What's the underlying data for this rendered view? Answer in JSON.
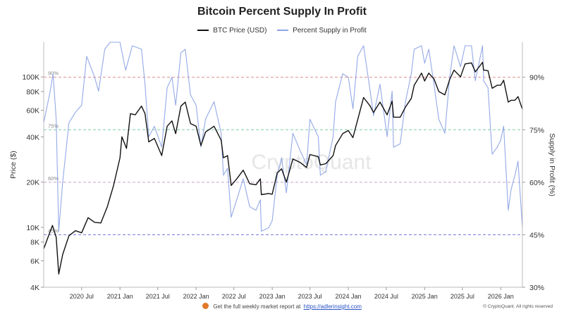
{
  "chart_data": {
    "type": "line",
    "title": "Bitcoin Percent Supply In Profit",
    "ylabel_left": "Price ($)",
    "ylabel_right": "Supply in Profit (%)",
    "left_axis": {
      "scale": "log",
      "range": [
        4000,
        170000
      ],
      "ticks": [
        4000,
        6000,
        8000,
        10000,
        20000,
        40000,
        60000,
        80000,
        100000
      ],
      "tick_labels": [
        "4K",
        "6K",
        "8K",
        "10K",
        "20K",
        "40K",
        "60K",
        "80K",
        "100K"
      ]
    },
    "right_axis": {
      "range": [
        30,
        100
      ],
      "ticks": [
        30,
        45,
        60,
        75,
        90
      ],
      "tick_labels": [
        "30%",
        "45%",
        "60%",
        "75%",
        "90%"
      ]
    },
    "x_ticks": [
      "2020 Jul",
      "2021 Jan",
      "2021 Jul",
      "2022 Jan",
      "2022 Jul",
      "2023 Jan",
      "2023 Jul",
      "2024 Jan",
      "2024 Jul",
      "2025 Jan",
      "2025 Jul",
      "2026 Jan"
    ],
    "x_range": [
      "2020-01-01",
      "2026-04-15"
    ],
    "reference_lines": [
      {
        "label": "90%",
        "value": 90,
        "color": "#e08a8a"
      },
      {
        "label": "75%",
        "value": 75,
        "color": "#7fd0a6"
      },
      {
        "label": "60%",
        "value": 60,
        "color": "#c9a0c9"
      },
      {
        "label": "45%",
        "value": 45,
        "color": "#6f74d8"
      }
    ],
    "watermark": "CryptoQuant",
    "series": [
      {
        "name": "BTC Price (USD)",
        "axis": "left",
        "color": "#111111",
        "points": [
          [
            "2020-01-01",
            7200
          ],
          [
            "2020-02-12",
            10300
          ],
          [
            "2020-03-01",
            8600
          ],
          [
            "2020-03-13",
            4900
          ],
          [
            "2020-04-01",
            6600
          ],
          [
            "2020-05-01",
            8800
          ],
          [
            "2020-06-01",
            9500
          ],
          [
            "2020-07-01",
            9200
          ],
          [
            "2020-08-01",
            11600
          ],
          [
            "2020-09-01",
            10800
          ],
          [
            "2020-10-01",
            10700
          ],
          [
            "2020-11-01",
            13700
          ],
          [
            "2020-12-01",
            19000
          ],
          [
            "2021-01-01",
            29000
          ],
          [
            "2021-01-10",
            40000
          ],
          [
            "2021-02-01",
            33500
          ],
          [
            "2021-02-20",
            57000
          ],
          [
            "2021-03-15",
            56000
          ],
          [
            "2021-04-14",
            64000
          ],
          [
            "2021-05-01",
            57000
          ],
          [
            "2021-05-19",
            37000
          ],
          [
            "2021-06-15",
            39000
          ],
          [
            "2021-07-20",
            30000
          ],
          [
            "2021-08-15",
            47000
          ],
          [
            "2021-09-07",
            51000
          ],
          [
            "2021-09-25",
            42000
          ],
          [
            "2021-10-20",
            64000
          ],
          [
            "2021-11-10",
            68000
          ],
          [
            "2021-12-05",
            49000
          ],
          [
            "2022-01-01",
            47000
          ],
          [
            "2022-01-24",
            35000
          ],
          [
            "2022-02-15",
            43000
          ],
          [
            "2022-03-28",
            47000
          ],
          [
            "2022-05-01",
            38000
          ],
          [
            "2022-05-12",
            29000
          ],
          [
            "2022-06-01",
            30000
          ],
          [
            "2022-06-18",
            19000
          ],
          [
            "2022-07-15",
            21000
          ],
          [
            "2022-08-15",
            24000
          ],
          [
            "2022-09-15",
            19500
          ],
          [
            "2022-10-15",
            19200
          ],
          [
            "2022-11-05",
            21000
          ],
          [
            "2022-11-10",
            16500
          ],
          [
            "2022-12-15",
            16800
          ],
          [
            "2023-01-01",
            16600
          ],
          [
            "2023-01-25",
            23000
          ],
          [
            "2023-02-15",
            24500
          ],
          [
            "2023-03-10",
            20000
          ],
          [
            "2023-04-10",
            28500
          ],
          [
            "2023-05-15",
            27000
          ],
          [
            "2023-06-15",
            25000
          ],
          [
            "2023-07-01",
            30500
          ],
          [
            "2023-08-10",
            29500
          ],
          [
            "2023-08-20",
            26000
          ],
          [
            "2023-09-15",
            26500
          ],
          [
            "2023-10-20",
            30000
          ],
          [
            "2023-11-01",
            35000
          ],
          [
            "2023-12-05",
            42000
          ],
          [
            "2024-01-01",
            44000
          ],
          [
            "2024-01-23",
            39500
          ],
          [
            "2024-02-15",
            52000
          ],
          [
            "2024-03-14",
            73000
          ],
          [
            "2024-04-15",
            64000
          ],
          [
            "2024-05-01",
            58000
          ],
          [
            "2024-06-01",
            68000
          ],
          [
            "2024-07-05",
            56000
          ],
          [
            "2024-07-29",
            69000
          ],
          [
            "2024-08-05",
            54000
          ],
          [
            "2024-09-06",
            54000
          ],
          [
            "2024-10-01",
            63000
          ],
          [
            "2024-10-29",
            72000
          ],
          [
            "2024-11-12",
            88000
          ],
          [
            "2024-12-17",
            106000
          ],
          [
            "2025-01-01",
            94000
          ],
          [
            "2025-01-21",
            106000
          ],
          [
            "2025-02-15",
            97000
          ],
          [
            "2025-03-10",
            80000
          ],
          [
            "2025-04-08",
            76000
          ],
          [
            "2025-05-01",
            96000
          ],
          [
            "2025-05-22",
            111000
          ],
          [
            "2025-06-22",
            100000
          ],
          [
            "2025-07-14",
            122000
          ],
          [
            "2025-08-14",
            124000
          ],
          [
            "2025-09-01",
            108000
          ],
          [
            "2025-10-06",
            125000
          ],
          [
            "2025-10-11",
            111000
          ],
          [
            "2025-11-01",
            110000
          ],
          [
            "2025-11-21",
            84000
          ],
          [
            "2025-12-15",
            88000
          ],
          [
            "2026-01-01",
            88000
          ],
          [
            "2026-01-15",
            95000
          ],
          [
            "2026-02-06",
            68000
          ],
          [
            "2026-02-20",
            70000
          ],
          [
            "2026-03-10",
            70000
          ],
          [
            "2026-03-25",
            74000
          ],
          [
            "2026-04-15",
            61000
          ]
        ]
      },
      {
        "name": "Percent Supply in Profit",
        "axis": "right",
        "color": "#8ea4e6",
        "points": [
          [
            "2020-01-01",
            77
          ],
          [
            "2020-02-01",
            86
          ],
          [
            "2020-02-15",
            91
          ],
          [
            "2020-03-01",
            78
          ],
          [
            "2020-03-13",
            46
          ],
          [
            "2020-04-01",
            60
          ],
          [
            "2020-05-01",
            77
          ],
          [
            "2020-06-01",
            80
          ],
          [
            "2020-07-01",
            82
          ],
          [
            "2020-07-25",
            96
          ],
          [
            "2020-09-01",
            90
          ],
          [
            "2020-09-20",
            86
          ],
          [
            "2020-10-20",
            98
          ],
          [
            "2020-11-15",
            100
          ],
          [
            "2021-01-01",
            100
          ],
          [
            "2021-01-28",
            92
          ],
          [
            "2021-03-01",
            99
          ],
          [
            "2021-04-14",
            98
          ],
          [
            "2021-05-01",
            88
          ],
          [
            "2021-05-19",
            73
          ],
          [
            "2021-06-15",
            76
          ],
          [
            "2021-07-20",
            70
          ],
          [
            "2021-08-15",
            87
          ],
          [
            "2021-09-07",
            90
          ],
          [
            "2021-09-25",
            82
          ],
          [
            "2021-10-20",
            97
          ],
          [
            "2021-11-10",
            98
          ],
          [
            "2021-12-05",
            85
          ],
          [
            "2022-01-01",
            82
          ],
          [
            "2022-01-24",
            70
          ],
          [
            "2022-02-15",
            78
          ],
          [
            "2022-03-28",
            83
          ],
          [
            "2022-05-01",
            74
          ],
          [
            "2022-05-12",
            62
          ],
          [
            "2022-06-01",
            64
          ],
          [
            "2022-06-18",
            50
          ],
          [
            "2022-07-15",
            55
          ],
          [
            "2022-08-15",
            61
          ],
          [
            "2022-09-15",
            53
          ],
          [
            "2022-10-15",
            52
          ],
          [
            "2022-11-05",
            55
          ],
          [
            "2022-11-10",
            46
          ],
          [
            "2022-12-15",
            47
          ],
          [
            "2023-01-01",
            49
          ],
          [
            "2023-01-25",
            62
          ],
          [
            "2023-02-15",
            67
          ],
          [
            "2023-03-10",
            57
          ],
          [
            "2023-04-10",
            74
          ],
          [
            "2023-05-15",
            69
          ],
          [
            "2023-06-15",
            65
          ],
          [
            "2023-07-01",
            78
          ],
          [
            "2023-08-10",
            73
          ],
          [
            "2023-08-20",
            62
          ],
          [
            "2023-09-15",
            63
          ],
          [
            "2023-10-20",
            73
          ],
          [
            "2023-11-01",
            83
          ],
          [
            "2023-12-05",
            91
          ],
          [
            "2024-01-01",
            90
          ],
          [
            "2024-01-23",
            81
          ],
          [
            "2024-02-15",
            96
          ],
          [
            "2024-03-14",
            99
          ],
          [
            "2024-04-15",
            86
          ],
          [
            "2024-05-01",
            79
          ],
          [
            "2024-06-01",
            88
          ],
          [
            "2024-07-05",
            73
          ],
          [
            "2024-07-29",
            86
          ],
          [
            "2024-08-05",
            70
          ],
          [
            "2024-09-06",
            71
          ],
          [
            "2024-10-01",
            83
          ],
          [
            "2024-10-29",
            91
          ],
          [
            "2024-11-12",
            98
          ],
          [
            "2024-12-17",
            99
          ],
          [
            "2025-01-01",
            94
          ],
          [
            "2025-01-21",
            98
          ],
          [
            "2025-02-15",
            88
          ],
          [
            "2025-03-10",
            78
          ],
          [
            "2025-04-08",
            74
          ],
          [
            "2025-05-01",
            90
          ],
          [
            "2025-05-22",
            99
          ],
          [
            "2025-06-22",
            93
          ],
          [
            "2025-07-14",
            99
          ],
          [
            "2025-08-14",
            99
          ],
          [
            "2025-09-01",
            89
          ],
          [
            "2025-10-06",
            99
          ],
          [
            "2025-10-11",
            89
          ],
          [
            "2025-11-01",
            87
          ],
          [
            "2025-11-21",
            68
          ],
          [
            "2025-12-15",
            70
          ],
          [
            "2026-01-01",
            72
          ],
          [
            "2026-01-15",
            76
          ],
          [
            "2026-02-06",
            52
          ],
          [
            "2026-02-20",
            58
          ],
          [
            "2026-03-10",
            62
          ],
          [
            "2026-03-25",
            66
          ],
          [
            "2026-04-15",
            47
          ]
        ]
      }
    ]
  },
  "legend": [
    {
      "label": "BTC Price (USD)",
      "color": "#111111"
    },
    {
      "label": "Percent Supply in Profit",
      "color": "#8ea4e6"
    }
  ],
  "footer": {
    "text": "Get the full weekly market report at",
    "link": "https://adlerinsight.com",
    "copyright": "© CryptoQuant. All rights reserved"
  }
}
